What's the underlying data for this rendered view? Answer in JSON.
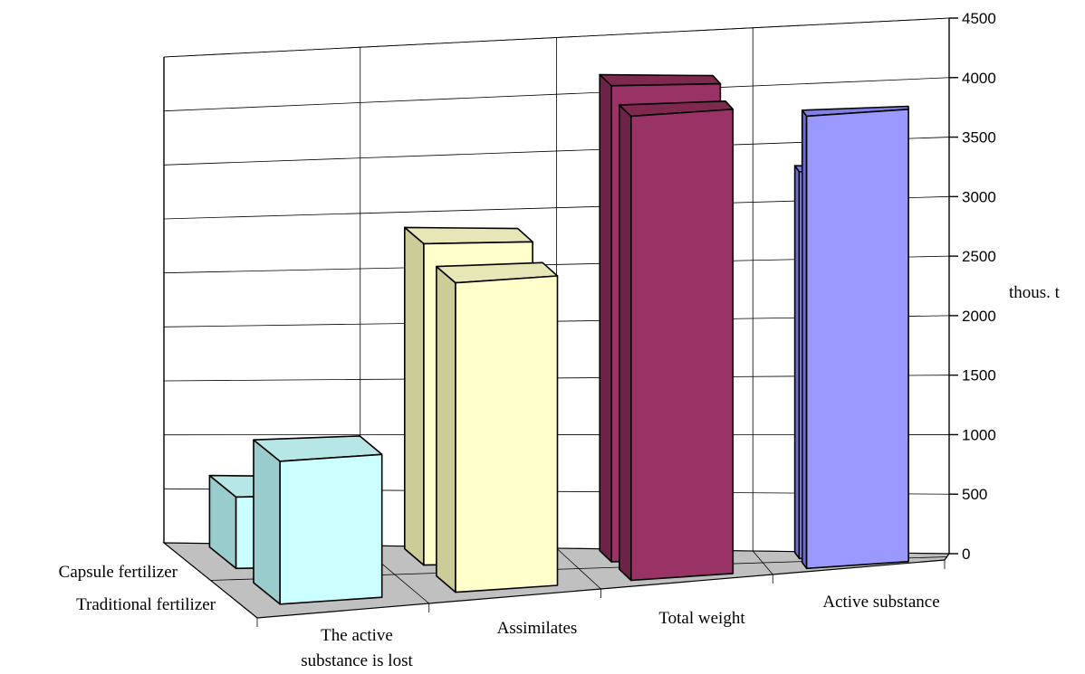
{
  "chart_data": {
    "type": "bar",
    "categories": [
      "The active substance is lost",
      "Assimilates",
      "Total weight",
      "Active substance"
    ],
    "category_lines": [
      [
        "The active",
        "substance is lost"
      ],
      [
        "Assimilates"
      ],
      [
        "Total weight"
      ],
      [
        "Active substance"
      ]
    ],
    "series": [
      {
        "name": "Capsule fertilizer",
        "values": [
          600,
          2700,
          4000,
          3250
        ]
      },
      {
        "name": "Traditional fertilizer",
        "values": [
          1200,
          2600,
          3900,
          3800
        ]
      }
    ],
    "series_colors": [
      [
        "#ccffff",
        "#99cccc",
        "#b6e6e6"
      ],
      [
        "#ffffcc",
        "#cccc99",
        "#e6e6b6"
      ],
      [
        "#993366",
        "#6b2447",
        "#80294f"
      ],
      [
        "#9999ff",
        "#6b6bcc",
        "#8080e6"
      ]
    ],
    "ylabel": "thous. t",
    "ylim": [
      0,
      4500
    ],
    "yticks": [
      0,
      500,
      1000,
      1500,
      2000,
      2500,
      3000,
      3500,
      4000,
      4500
    ],
    "grid": true,
    "view": "3d-column"
  }
}
